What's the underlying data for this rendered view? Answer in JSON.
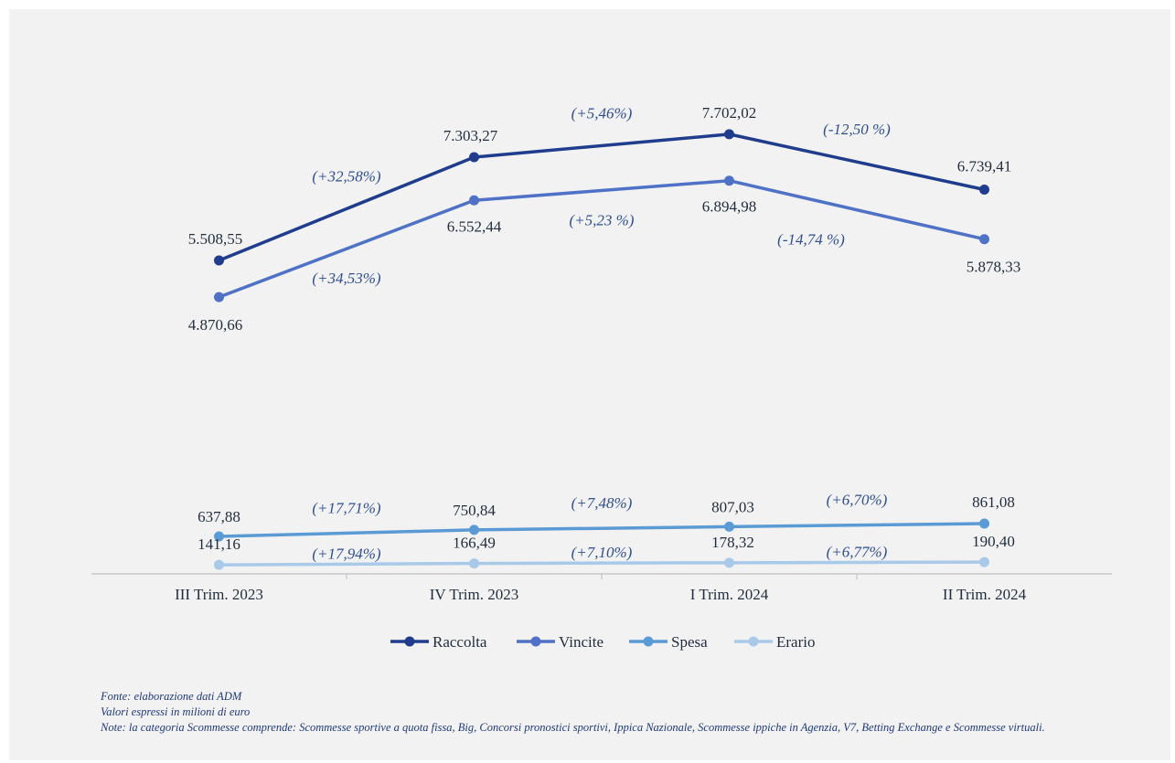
{
  "chart_data": {
    "type": "line",
    "categories": [
      "III Trim. 2023",
      "IV Trim. 2023",
      "I Trim. 2024",
      "II Trim. 2024"
    ],
    "series": [
      {
        "name": "Raccolta",
        "color": "#1f3d8c",
        "values": [
          5508.55,
          7303.27,
          7702.02,
          6739.41
        ],
        "value_labels": [
          "5.508,55",
          "7.303,27",
          "7.702,02",
          "6.739,41"
        ],
        "changes": [
          "(+32,58%)",
          "(+5,46%)",
          "(-12,50 %)"
        ]
      },
      {
        "name": "Vincite",
        "color": "#4f72c6",
        "values": [
          4870.66,
          6552.44,
          6894.98,
          5878.33
        ],
        "value_labels": [
          "4.870,66",
          "6.552,44",
          "6.894,98",
          "5.878,33"
        ],
        "changes": [
          "(+34,53%)",
          "(+5,23 %)",
          "(-14,74 %)"
        ]
      },
      {
        "name": "Spesa",
        "color": "#5b9bd5",
        "values": [
          637.88,
          750.84,
          807.03,
          861.08
        ],
        "value_labels": [
          "637,88",
          "750,84",
          "807,03",
          "861,08"
        ],
        "changes": [
          "(+17,71%)",
          "(+7,48%)",
          "(+6,70%)"
        ]
      },
      {
        "name": "Erario",
        "color": "#a9c9e9",
        "values": [
          141.16,
          166.49,
          178.32,
          190.4
        ],
        "value_labels": [
          "141,16",
          "166,49",
          "178,32",
          "190,40"
        ],
        "changes": [
          "(+17,94%)",
          "(+7,10%)",
          "(+6,77%)"
        ]
      }
    ],
    "title": "",
    "xlabel": "",
    "ylabel": "",
    "ylim": [
      0,
      9000
    ],
    "grid": false,
    "legend_position": "bottom"
  },
  "notes": {
    "source": "Fonte: elaborazione dati ADM",
    "units": "Valori espressi in milioni di euro",
    "note": "Note: la categoria Scommesse comprende: Scommesse sportive a quota fissa, Big, Concorsi pronostici sportivi, Ippica Nazionale, Scommesse ippiche in Agenzia, V7, Betting Exchange e Scommesse virtuali."
  }
}
